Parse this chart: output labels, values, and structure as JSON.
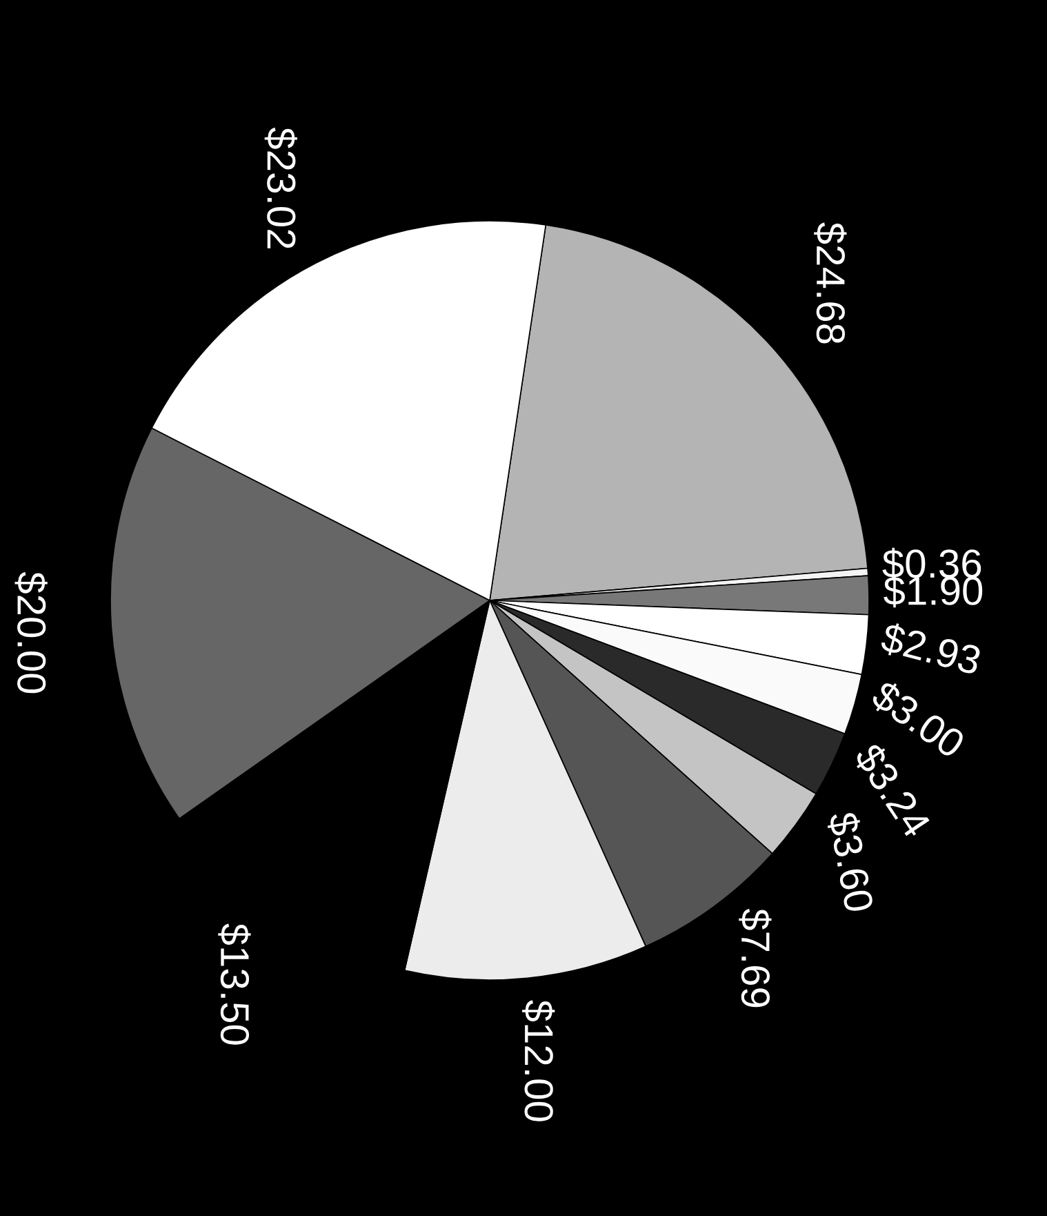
{
  "chart_data": {
    "type": "pie",
    "categories": [
      "$24.68",
      "$0.36",
      "$1.90",
      "$2.93",
      "$3.00",
      "$3.24",
      "$3.60",
      "$7.69",
      "$12.00",
      "$13.50",
      "$20.00",
      "$23.02"
    ],
    "values": [
      24.68,
      0.36,
      1.9,
      2.93,
      3.0,
      3.24,
      3.6,
      7.69,
      12.0,
      13.5,
      20.0,
      23.02
    ],
    "colors": [
      "#b4b4b4",
      "#f4f4f4",
      "#787878",
      "#ffffff",
      "#fafafa",
      "#2a2a2a",
      "#c4c4c4",
      "#555555",
      "#ececec",
      "#000000",
      "#666666",
      "#ffffff"
    ]
  }
}
